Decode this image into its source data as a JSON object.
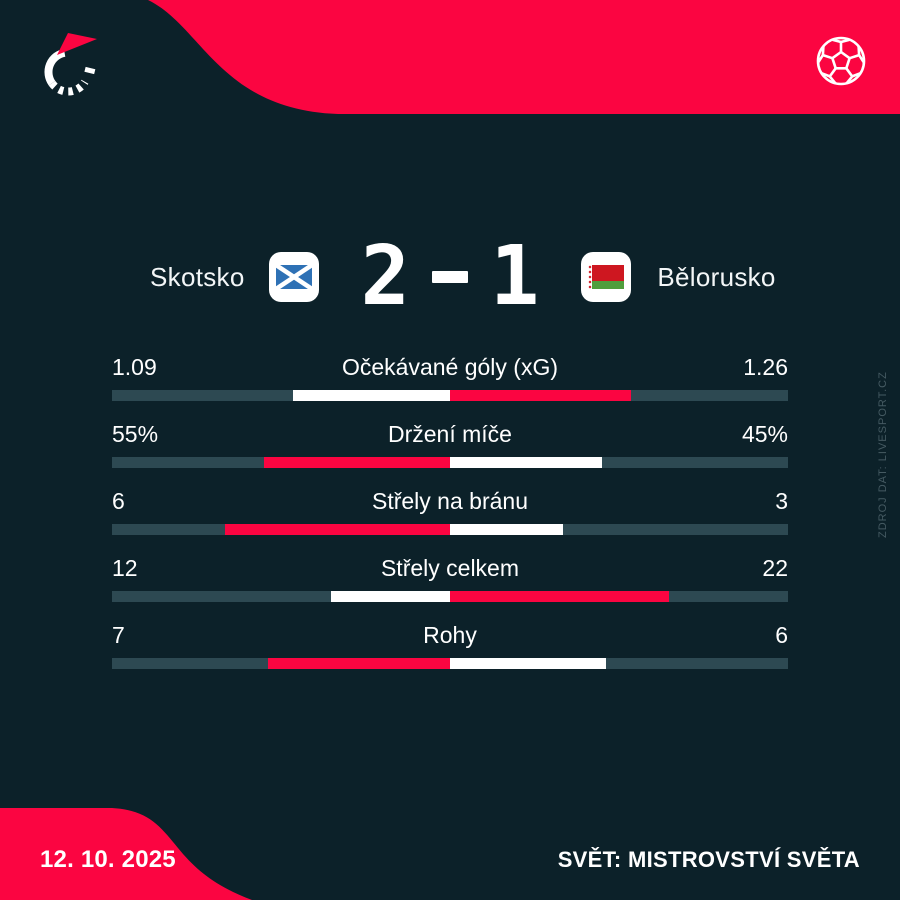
{
  "colors": {
    "background": "#0c2129",
    "accent_red": "#fb0541",
    "bar_track": "#2d4952",
    "bar_white": "#ffffff",
    "watermark": "#455a62",
    "scotland_blue": "#2e71b5",
    "belarus_red": "#ce1720",
    "belarus_green": "#4f9e3c"
  },
  "header": {
    "logo_icon": "livesport-stopwatch-logo",
    "ball_icon": "football"
  },
  "scoreboard": {
    "home_team": "Skotsko",
    "away_team": "Bělorusko",
    "home_score": "2",
    "separator": "-",
    "away_score": "1",
    "home_flag": "scotland",
    "away_flag": "belarus"
  },
  "stats": {
    "rows": [
      {
        "label": "Očekávané góly (xG)",
        "home": "1.09",
        "away": "1.26",
        "home_value": 1.09,
        "away_value": 1.26,
        "winner": "away"
      },
      {
        "label": "Držení míče",
        "home": "55%",
        "away": "45%",
        "home_value": 55,
        "away_value": 45,
        "winner": "home"
      },
      {
        "label": "Střely na bránu",
        "home": "6",
        "away": "3",
        "home_value": 6,
        "away_value": 3,
        "winner": "home"
      },
      {
        "label": "Střely celkem",
        "home": "12",
        "away": "22",
        "home_value": 12,
        "away_value": 22,
        "winner": "away"
      },
      {
        "label": "Rohy",
        "home": "7",
        "away": "6",
        "home_value": 7,
        "away_value": 6,
        "winner": "home"
      }
    ]
  },
  "chart_data": {
    "type": "bar",
    "orientation": "horizontal-paired-from-center",
    "title": "Skotsko 2 - 1 Bělorusko",
    "categories": [
      "Očekávané góly (xG)",
      "Držení míče",
      "Střely na bránu",
      "Střely celkem",
      "Rohy"
    ],
    "series": [
      {
        "name": "Skotsko",
        "values": [
          1.09,
          55,
          6,
          12,
          7
        ]
      },
      {
        "name": "Bělorusko",
        "values": [
          1.26,
          45,
          3,
          22,
          6
        ]
      }
    ],
    "value_labels": {
      "home": [
        "1.09",
        "55%",
        "6",
        "12",
        "7"
      ],
      "away": [
        "1.26",
        "45%",
        "3",
        "22",
        "6"
      ]
    },
    "legend_position": "none",
    "grid": false,
    "note": "each half-bar length = value/(home+away); red segment marks the higher value, white the lower"
  },
  "footer": {
    "date": "12. 10. 2025",
    "competition": "SVĚT: MISTROVSTVÍ SVĚTA"
  },
  "watermark": "ZDROJ DAT: LIVESPORT.CZ"
}
